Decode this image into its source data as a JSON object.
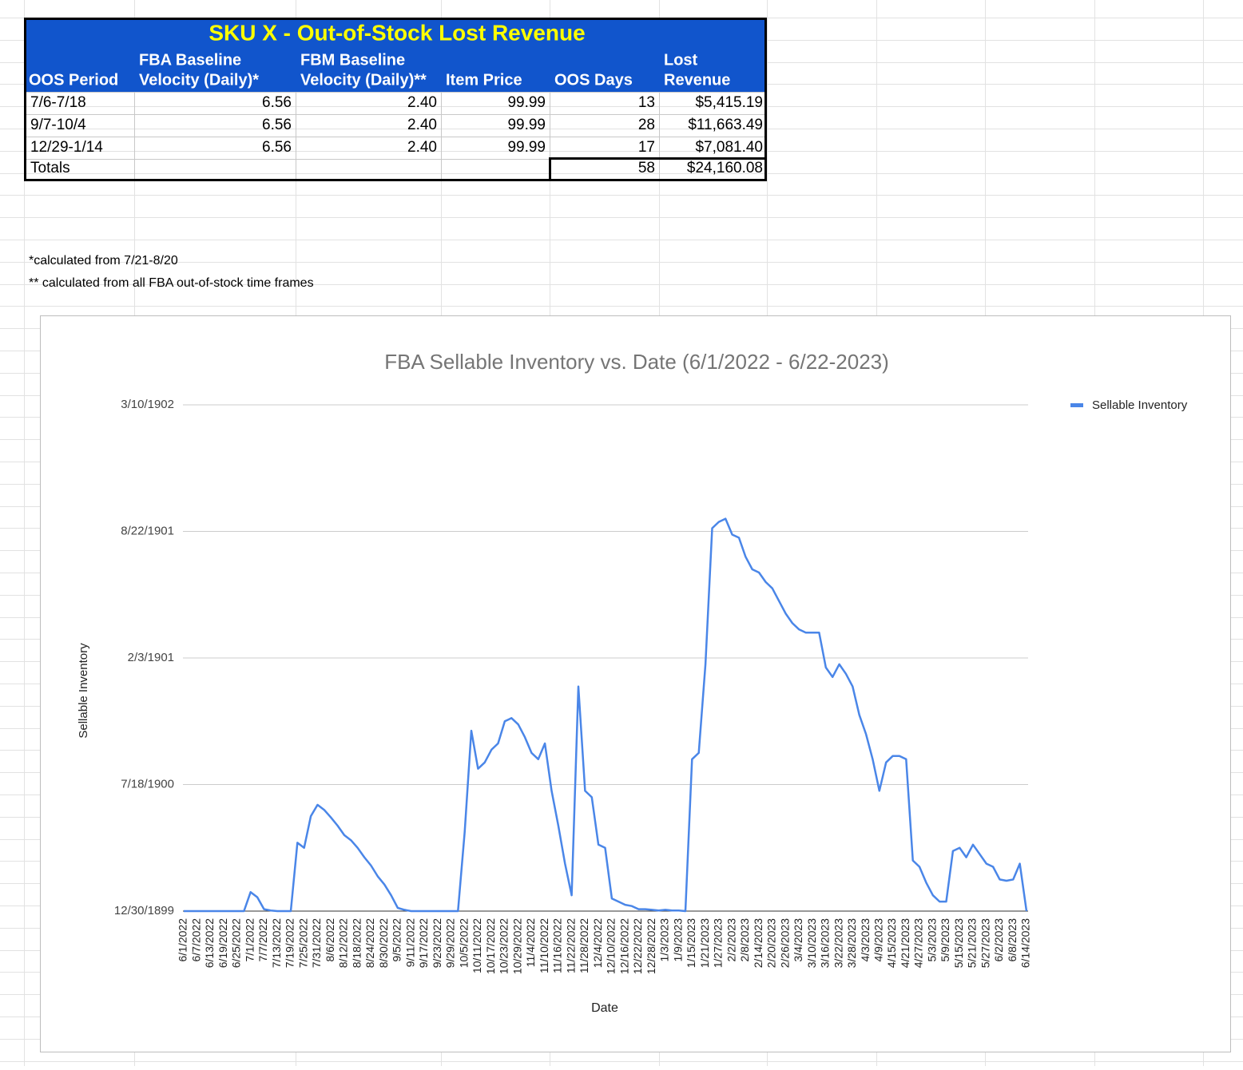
{
  "table": {
    "title": "SKU X - Out-of-Stock Lost Revenue",
    "headers": [
      [
        "OOS Period"
      ],
      [
        "FBA Baseline",
        "Velocity (Daily)*"
      ],
      [
        "FBM Baseline",
        "Velocity (Daily)**"
      ],
      [
        "Item Price"
      ],
      [
        "OOS Days"
      ],
      [
        "Lost",
        "Revenue"
      ]
    ],
    "rows": [
      [
        "7/6-7/18",
        "6.56",
        "2.40",
        "99.99",
        "13",
        "$5,415.19"
      ],
      [
        "9/7-10/4",
        "6.56",
        "2.40",
        "99.99",
        "28",
        "$11,663.49"
      ],
      [
        "12/29-1/14",
        "6.56",
        "2.40",
        "99.99",
        "17",
        "$7,081.40"
      ]
    ],
    "totals": {
      "label": "Totals",
      "oos_days": "58",
      "lost_revenue": "$24,160.08"
    }
  },
  "footnotes": [
    "*calculated from 7/21-8/20",
    "** calculated from all FBA out-of-stock time frames"
  ],
  "chart_data": {
    "type": "line",
    "title": "FBA Sellable Inventory vs. Date  (6/1/2022 - 6/22-2023)",
    "x_label": "Date",
    "y_label": "Sellable Inventory",
    "legend": "right",
    "grid": true,
    "ylim": [
      0,
      800
    ],
    "yticks": [
      {
        "value": 0,
        "label": "12/30/1899"
      },
      {
        "value": 200,
        "label": "7/18/1900"
      },
      {
        "value": 400,
        "label": "2/3/1901"
      },
      {
        "value": 600,
        "label": "8/22/1901"
      },
      {
        "value": 800,
        "label": "3/10/1902"
      }
    ],
    "categories": [
      "6/1/2022",
      null,
      "6/7/2022",
      null,
      "6/13/2022",
      null,
      "6/19/2022",
      null,
      "6/25/2022",
      null,
      "7/1/2022",
      null,
      "7/7/2022",
      null,
      "7/13/2022",
      null,
      "7/19/2022",
      null,
      "7/25/2022",
      null,
      "7/31/2022",
      null,
      "8/6/2022",
      null,
      "8/12/2022",
      null,
      "8/18/2022",
      null,
      "8/24/2022",
      null,
      "8/30/2022",
      null,
      "9/5/2022",
      null,
      "9/11/2022",
      null,
      "9/17/2022",
      null,
      "9/23/2022",
      null,
      "9/29/2022",
      null,
      "10/5/2022",
      null,
      "10/11/2022",
      null,
      "10/17/2022",
      null,
      "10/23/2022",
      null,
      "10/29/2022",
      null,
      "11/4/2022",
      null,
      "11/10/2022",
      null,
      "11/16/2022",
      null,
      "11/22/2022",
      null,
      "11/28/2022",
      null,
      "12/4/2022",
      null,
      "12/10/2022",
      null,
      "12/16/2022",
      null,
      "12/22/2022",
      null,
      "12/28/2022",
      null,
      "1/3/2023",
      null,
      "1/9/2023",
      null,
      "1/15/2023",
      null,
      "1/21/2023",
      null,
      "1/27/2023",
      null,
      "2/2/2023",
      null,
      "2/8/2023",
      null,
      "2/14/2023",
      null,
      "2/20/2023",
      null,
      "2/26/2023",
      null,
      "3/4/2023",
      null,
      "3/10/2023",
      null,
      "3/16/2023",
      null,
      "3/22/2023",
      null,
      "3/28/2023",
      null,
      "4/3/2023",
      null,
      "4/9/2023",
      null,
      "4/15/2023",
      null,
      "4/21/2023",
      null,
      "4/27/2023",
      null,
      "5/3/2023",
      null,
      "5/9/2023",
      null,
      "5/15/2023",
      null,
      "5/21/2023",
      null,
      "5/27/2023",
      null,
      "6/2/2023",
      null,
      "6/8/2023",
      null,
      "6/14/2023"
    ],
    "series": [
      {
        "name": "Sellable Inventory",
        "color": "#4a86e8",
        "values": [
          0,
          0,
          0,
          0,
          0,
          0,
          0,
          0,
          0,
          0,
          30,
          22,
          3,
          1,
          0,
          0,
          0,
          108,
          100,
          150,
          168,
          160,
          148,
          135,
          120,
          112,
          100,
          85,
          72,
          55,
          42,
          25,
          5,
          2,
          0,
          0,
          0,
          0,
          0,
          0,
          0,
          0,
          125,
          285,
          225,
          235,
          255,
          265,
          300,
          305,
          295,
          275,
          250,
          240,
          265,
          190,
          135,
          75,
          25,
          355,
          190,
          180,
          105,
          100,
          20,
          15,
          10,
          8,
          3,
          3,
          2,
          1,
          2,
          1,
          1,
          0,
          240,
          250,
          390,
          605,
          615,
          620,
          595,
          590,
          560,
          540,
          535,
          520,
          510,
          490,
          470,
          455,
          445,
          440,
          440,
          440,
          385,
          370,
          390,
          375,
          355,
          310,
          280,
          240,
          190,
          235,
          245,
          245,
          240,
          80,
          70,
          45,
          25,
          15,
          15,
          95,
          100,
          85,
          105,
          90,
          75,
          70,
          50,
          48,
          50,
          75,
          0
        ]
      }
    ]
  }
}
